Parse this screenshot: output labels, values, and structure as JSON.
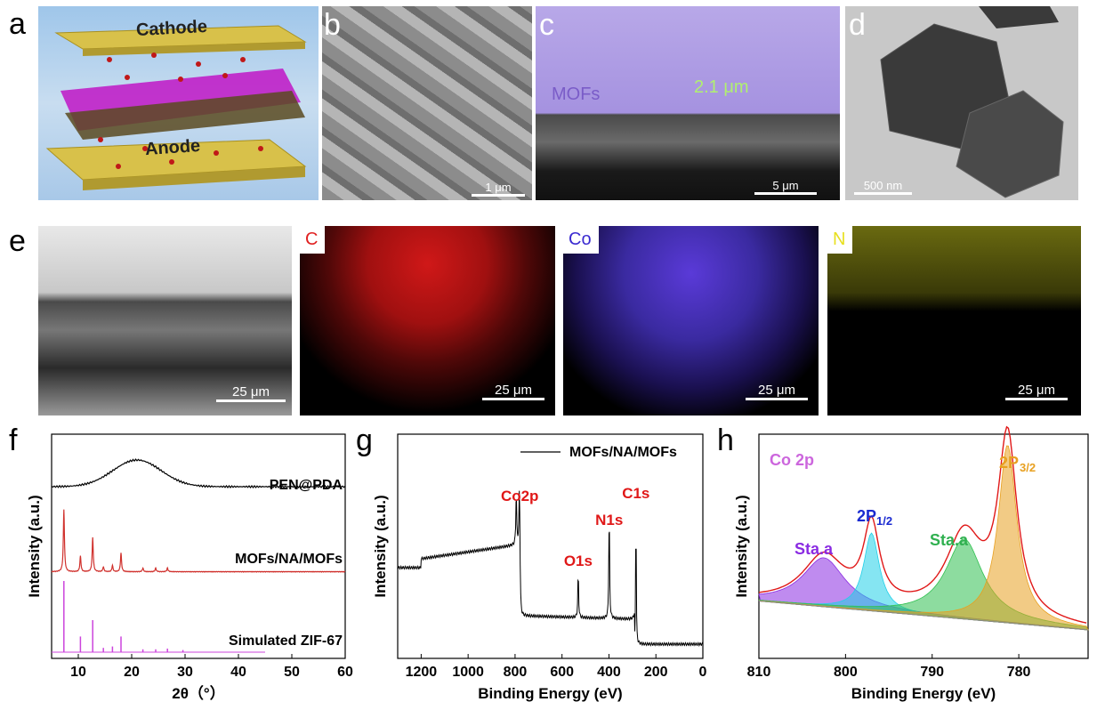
{
  "panels": {
    "a": {
      "letter": "a",
      "cathode": "Cathode",
      "anode": "Anode"
    },
    "b": {
      "letter": "b",
      "scale": "1 μm"
    },
    "c": {
      "letter": "c",
      "mofs": "MOFs",
      "thickness": "2.1 μm",
      "scale": "5 μm"
    },
    "d": {
      "letter": "d",
      "scale": "500 nm"
    },
    "e": {
      "letter": "e",
      "scale": "25 μm",
      "maps": [
        {
          "element": "C",
          "color": "#e02020",
          "scale": "25 μm"
        },
        {
          "element": "Co",
          "color": "#3a2ad0",
          "scale": "25 μm"
        },
        {
          "element": "N",
          "color": "#e8e020",
          "scale": "25 μm"
        }
      ]
    },
    "f": {
      "letter": "f"
    },
    "g": {
      "letter": "g"
    },
    "h": {
      "letter": "h"
    }
  },
  "chart_data": [
    {
      "id": "f",
      "type": "line",
      "xlabel": "2θ（°）",
      "ylabel": "Intensity (a.u.)",
      "xlim": [
        5,
        60
      ],
      "xticks": [
        10,
        20,
        30,
        40,
        50,
        60
      ],
      "series": [
        {
          "name": "PEN@PDA",
          "color": "#000000",
          "peaks": [
            [
              21,
              0.6,
              4.5
            ]
          ],
          "baseline": 0.12
        },
        {
          "name": "MOFs/NA/MOFs",
          "color": "#d0312d",
          "peaks": [
            [
              7.3,
              1.0
            ],
            [
              10.4,
              0.25
            ],
            [
              12.7,
              0.55
            ],
            [
              14.7,
              0.08
            ],
            [
              16.4,
              0.1
            ],
            [
              18.0,
              0.3
            ],
            [
              22.1,
              0.06
            ],
            [
              24.5,
              0.06
            ],
            [
              26.7,
              0.06
            ]
          ],
          "baseline": 0.0
        },
        {
          "name": "Simulated ZIF-67",
          "color": "#cc44dd",
          "sticks": [
            [
              7.3,
              1.0
            ],
            [
              10.4,
              0.22
            ],
            [
              12.7,
              0.45
            ],
            [
              14.7,
              0.06
            ],
            [
              16.4,
              0.08
            ],
            [
              18.0,
              0.22
            ],
            [
              22.1,
              0.04
            ],
            [
              24.5,
              0.04
            ],
            [
              26.7,
              0.05
            ],
            [
              29.6,
              0.03
            ]
          ]
        }
      ]
    },
    {
      "id": "g",
      "type": "line",
      "xlabel": "Binding Energy (eV)",
      "ylabel": "Intensity (a.u.)",
      "xlim": [
        1300,
        0
      ],
      "xticks": [
        1200,
        1000,
        800,
        600,
        400,
        200,
        0
      ],
      "series": [
        {
          "name": "MOFs/NA/MOFs",
          "color": "#000000"
        }
      ],
      "annotations": [
        {
          "text": "Co2p",
          "x": 780
        },
        {
          "text": "O1s",
          "x": 531
        },
        {
          "text": "N1s",
          "x": 399
        },
        {
          "text": "C1s",
          "x": 285
        }
      ]
    },
    {
      "id": "h",
      "type": "area",
      "xlabel": "Binding Energy (eV)",
      "ylabel": "Intensity (a.u.)",
      "xlim": [
        810,
        772
      ],
      "xticks": [
        810,
        800,
        790,
        780
      ],
      "title": "Co 2p",
      "components": [
        {
          "name": "Sta.a",
          "center": 802.5,
          "height": 0.22,
          "width": 3.0,
          "color": "#8a2be2"
        },
        {
          "name": "2P1/2",
          "center": 797.0,
          "height": 0.35,
          "width": 1.1,
          "color": "#20d0e8"
        },
        {
          "name": "Sta.a",
          "center": 786.3,
          "height": 0.36,
          "width": 2.6,
          "color": "#30c050"
        },
        {
          "name": "2P3/2",
          "center": 781.3,
          "height": 0.8,
          "width": 1.3,
          "color": "#e8a020"
        }
      ],
      "labels": {
        "p12": "2P",
        "p12_sub": "1/2",
        "p32": "2P",
        "p32_sub": "3/2",
        "sta": "Sta.a"
      }
    }
  ]
}
